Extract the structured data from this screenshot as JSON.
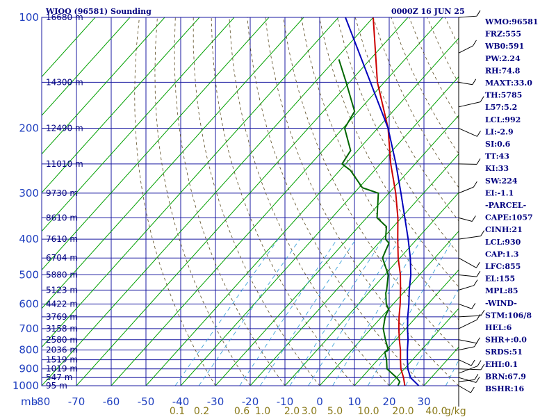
{
  "header": {
    "station": "WIOO (96581) Sounding",
    "time": "0000Z 16 JUN 25"
  },
  "chart_data": {
    "type": "line",
    "title": "WIOO (96581) Sounding",
    "subtitle": "0000Z 16 JUN 25",
    "xlabel": "",
    "ylabel": "mb",
    "xlim": [
      -80,
      40
    ],
    "ylim": [
      1000,
      100
    ],
    "y_scale": "log",
    "grid": true,
    "pressure_ticks": [
      100,
      200,
      300,
      400,
      500,
      600,
      700,
      800,
      900,
      1000
    ],
    "temperature_ticks": [
      -80,
      -70,
      -60,
      -50,
      -40,
      -30,
      -20,
      -10,
      0,
      10,
      20,
      30
    ],
    "mixing_ratio_labels": [
      "0.1",
      "0.2",
      "0.6",
      "1.0",
      "2.0",
      "3.0",
      "5.0",
      "10.0",
      "20.0",
      "40.0"
    ],
    "mixing_ratio_unit": "g/kg",
    "height_labels": [
      {
        "p": 1000,
        "label": "95 m"
      },
      {
        "p": 950,
        "label": "547 m"
      },
      {
        "p": 900,
        "label": "1019 m"
      },
      {
        "p": 850,
        "label": "1519 m"
      },
      {
        "p": 800,
        "label": "2036 m"
      },
      {
        "p": 750,
        "label": "2580 m"
      },
      {
        "p": 700,
        "label": "3158 m"
      },
      {
        "p": 650,
        "label": "3769 m"
      },
      {
        "p": 600,
        "label": "4422 m"
      },
      {
        "p": 550,
        "label": "5123 m"
      },
      {
        "p": 500,
        "label": "5880 m"
      },
      {
        "p": 450,
        "label": "6704 m"
      },
      {
        "p": 400,
        "label": "7610 m"
      },
      {
        "p": 350,
        "label": "8610 m"
      },
      {
        "p": 300,
        "label": "9730 m"
      },
      {
        "p": 250,
        "label": "11010 m"
      },
      {
        "p": 200,
        "label": "12490 m"
      },
      {
        "p": 150,
        "label": "14300 m"
      },
      {
        "p": 100,
        "label": "16680 m"
      }
    ],
    "series": [
      {
        "color": "#cc0000",
        "points": [
          [
            1000,
            24.5
          ],
          [
            950,
            22.0
          ],
          [
            900,
            19.0
          ],
          [
            850,
            16.5
          ],
          [
            800,
            14.0
          ],
          [
            750,
            11.0
          ],
          [
            700,
            8.0
          ],
          [
            650,
            5.0
          ],
          [
            600,
            2.0
          ],
          [
            550,
            -1.5
          ],
          [
            500,
            -5.5
          ],
          [
            450,
            -10.5
          ],
          [
            400,
            -15.5
          ],
          [
            350,
            -21.0
          ],
          [
            300,
            -28.0
          ],
          [
            250,
            -37.0
          ],
          [
            200,
            -47.0
          ],
          [
            150,
            -62.0
          ],
          [
            100,
            -80.0
          ]
        ]
      },
      {
        "color": "#006600",
        "points": [
          [
            1000,
            22.5
          ],
          [
            975,
            22.0
          ],
          [
            950,
            20.0
          ],
          [
            900,
            15.0
          ],
          [
            850,
            12.5
          ],
          [
            810,
            10.0
          ],
          [
            800,
            10.5
          ],
          [
            750,
            7.0
          ],
          [
            700,
            3.5
          ],
          [
            650,
            1.0
          ],
          [
            620,
            0.0
          ],
          [
            600,
            -2.0
          ],
          [
            560,
            -5.0
          ],
          [
            550,
            -5.5
          ],
          [
            500,
            -9.0
          ],
          [
            450,
            -15.0
          ],
          [
            430,
            -16.0
          ],
          [
            410,
            -17.0
          ],
          [
            400,
            -19.0
          ],
          [
            370,
            -22.0
          ],
          [
            350,
            -27.0
          ],
          [
            300,
            -33.0
          ],
          [
            290,
            -39.0
          ],
          [
            260,
            -47.0
          ],
          [
            250,
            -51.0
          ],
          [
            230,
            -52.0
          ],
          [
            200,
            -59.5
          ],
          [
            180,
            -61.0
          ],
          [
            150,
            -71.0
          ],
          [
            130,
            -79.0
          ]
        ]
      },
      {
        "color": "#0000bb",
        "points": [
          [
            1000,
            28.5
          ],
          [
            950,
            24.0
          ],
          [
            900,
            21.0
          ],
          [
            850,
            18.5
          ],
          [
            800,
            16.0
          ],
          [
            750,
            13.5
          ],
          [
            700,
            10.5
          ],
          [
            650,
            7.5
          ],
          [
            600,
            4.5
          ],
          [
            550,
            1.0
          ],
          [
            500,
            -2.5
          ],
          [
            450,
            -7.0
          ],
          [
            400,
            -12.5
          ],
          [
            350,
            -19.0
          ],
          [
            300,
            -26.5
          ],
          [
            250,
            -35.5
          ],
          [
            200,
            -47.0
          ],
          [
            150,
            -64.0
          ],
          [
            100,
            -88.0
          ]
        ]
      }
    ]
  },
  "indices": [
    "WMO:96581",
    "FRZ:555",
    "WB0:591",
    "PW:2.24",
    "RH:74.8",
    "MAXT:33.0",
    "TH:5785",
    "L57:5.2",
    "LCL:992",
    "LI:-2.9",
    "SI:0.6",
    "TT:43",
    "KI:33",
    "SW:224",
    "EI:-1.1",
    "-PARCEL-",
    "CAPE:1057",
    "CINH:21",
    "LCL:930",
    "CAP:1.3",
    "LFC:855",
    "EL:155",
    "MPL:85",
    "-WIND-",
    "STM:106/8",
    "HEL:6",
    "SHR+:0.0",
    "SRDS:51",
    "EHI:0.1",
    "BRN:67.9",
    "BSHR:16"
  ]
}
